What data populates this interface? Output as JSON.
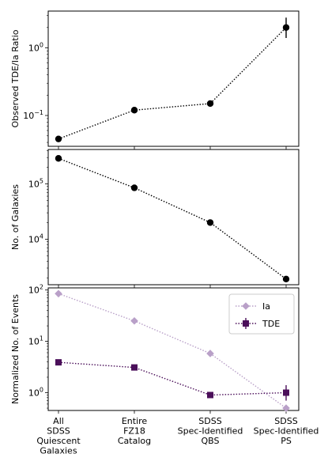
{
  "chart_data": {
    "type": "line",
    "shared_x_categories": [
      [
        "All",
        "SDSS",
        "Quiescent",
        "Galaxies"
      ],
      [
        "Entire",
        "FZ18",
        "Catalog"
      ],
      [
        "SDSS",
        "Spec-Identified",
        "QBS"
      ],
      [
        "SDSS",
        "Spec-Identified",
        "PS"
      ]
    ],
    "panels": [
      {
        "ylabel": "Observed TDE/Ia Ratio",
        "yscale": "log",
        "ylim": [
          0.035,
          3.5
        ],
        "yticks": [
          {
            "value": 0.1,
            "base": "10",
            "exp": "−1"
          },
          {
            "value": 1,
            "base": "10",
            "exp": "0"
          }
        ],
        "grid": false,
        "series": [
          {
            "values": [
              0.045,
              0.12,
              0.15,
              2.0
            ],
            "yerr_low": [
              0,
              0,
              0,
              0.6
            ],
            "yerr_high": [
              0,
              0,
              0,
              0.8
            ],
            "color": "#000000",
            "marker": "circle",
            "linestyle": "dotted"
          }
        ]
      },
      {
        "ylabel": "No. of Galaxies",
        "yscale": "log",
        "ylim": [
          1500,
          420000
        ],
        "yticks": [
          {
            "value": 10000,
            "base": "10",
            "exp": "4"
          },
          {
            "value": 100000,
            "base": "10",
            "exp": "5"
          }
        ],
        "grid": false,
        "series": [
          {
            "values": [
              290000,
              85000,
              20000,
              1900
            ],
            "color": "#000000",
            "marker": "circle",
            "linestyle": "dotted"
          }
        ]
      },
      {
        "ylabel": "Normalized No. of Events",
        "yscale": "log",
        "ylim": [
          0.45,
          110
        ],
        "yticks": [
          {
            "value": 1,
            "base": "10",
            "exp": "0"
          },
          {
            "value": 10,
            "base": "10",
            "exp": "1"
          },
          {
            "value": 100,
            "base": "10",
            "exp": "2"
          }
        ],
        "grid": false,
        "legend": "top-right",
        "series": [
          {
            "name": "Ia",
            "values": [
              85,
              25,
              5.8,
              0.5
            ],
            "color": "#b9a0c8",
            "marker": "diamond",
            "linestyle": "dotted"
          },
          {
            "name": "TDE",
            "values": [
              3.9,
              3.1,
              0.9,
              1.0
            ],
            "yerr_low": [
              0,
              0,
              0,
              0.3
            ],
            "yerr_high": [
              0,
              0,
              0,
              0.4
            ],
            "color": "#4b0f5a",
            "marker": "square",
            "linestyle": "dotted"
          }
        ]
      }
    ]
  }
}
